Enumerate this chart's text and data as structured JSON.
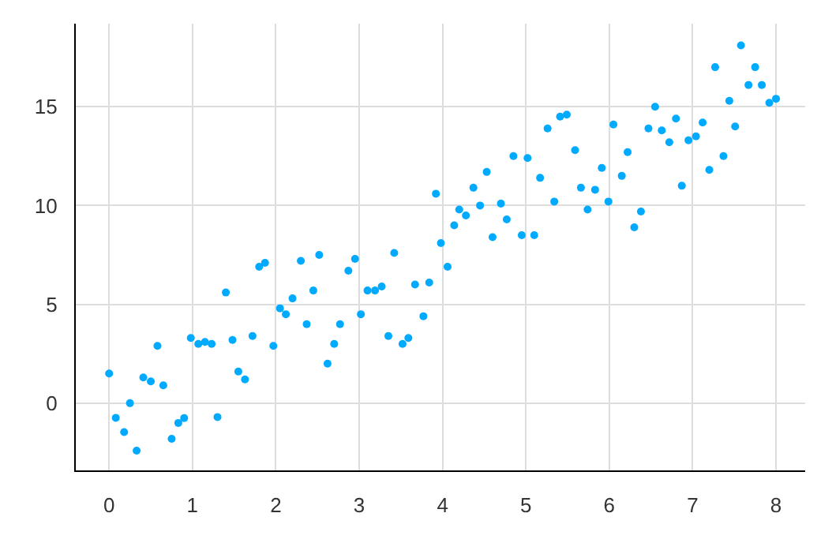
{
  "chart_data": {
    "type": "scatter",
    "marker": "circle",
    "grid": true,
    "xlim": [
      -0.4,
      8.35
    ],
    "ylim": [
      -3.4,
      19.2
    ],
    "xticks": [
      0,
      1,
      2,
      3,
      4,
      5,
      6,
      7,
      8
    ],
    "yticks": [
      0,
      5,
      10,
      15
    ],
    "series": [
      {
        "color": "#00aaff",
        "x": [
          0,
          0.08,
          0.18,
          0.25,
          0.33,
          0.41,
          0.5,
          0.58,
          0.65,
          0.75,
          0.83,
          0.9,
          0.98,
          1.07,
          1.15,
          1.23,
          1.3,
          1.4,
          1.48,
          1.55,
          1.63,
          1.72,
          1.8,
          1.87,
          1.97,
          2.05,
          2.12,
          2.2,
          2.3,
          2.37,
          2.45,
          2.52,
          2.62,
          2.7,
          2.77,
          2.87,
          2.95,
          3.02,
          3.1,
          3.19,
          3.27,
          3.35,
          3.42,
          3.52,
          3.59,
          3.67,
          3.77,
          3.84,
          3.92,
          3.98,
          4.06,
          4.14,
          4.2,
          4.28,
          4.37,
          4.45,
          4.53,
          4.6,
          4.7,
          4.77,
          4.85,
          4.95,
          5.02,
          5.1,
          5.17,
          5.26,
          5.34,
          5.41,
          5.49,
          5.59,
          5.66,
          5.74,
          5.83,
          5.91,
          5.99,
          6.05,
          6.15,
          6.22,
          6.3,
          6.38,
          6.47,
          6.55,
          6.63,
          6.72,
          6.8,
          6.87,
          6.95,
          7.04,
          7.12,
          7.2,
          7.27,
          7.37,
          7.44,
          7.51,
          7.58,
          7.67,
          7.75,
          7.83,
          7.92,
          8.0
        ],
        "values": [
          1.5,
          -0.74,
          -1.46,
          0,
          -2.4,
          1.3,
          1.1,
          2.9,
          0.9,
          -1.8,
          -1.0,
          -0.75,
          3.3,
          3.0,
          3.1,
          3.0,
          -0.7,
          5.6,
          3.2,
          1.6,
          1.2,
          3.4,
          6.9,
          7.1,
          2.9,
          4.8,
          4.5,
          5.3,
          7.2,
          4.0,
          5.7,
          7.5,
          2.0,
          3.0,
          4.0,
          6.7,
          7.3,
          4.5,
          5.7,
          5.7,
          5.9,
          3.4,
          7.6,
          3.0,
          3.3,
          6.0,
          4.4,
          6.1,
          10.6,
          8.1,
          6.9,
          9.0,
          9.8,
          9.5,
          10.9,
          10.0,
          11.7,
          8.4,
          10.1,
          9.3,
          12.5,
          8.5,
          12.4,
          8.5,
          11.4,
          13.9,
          10.2,
          14.5,
          14.6,
          12.8,
          10.9,
          9.8,
          10.8,
          11.9,
          10.2,
          14.1,
          11.5,
          12.7,
          8.9,
          9.7,
          13.9,
          15.0,
          13.8,
          13.2,
          14.4,
          11.0,
          13.3,
          13.5,
          14.2,
          11.8,
          17.0,
          12.5,
          15.3,
          14.0,
          18.1,
          16.1,
          17.0,
          16.1,
          15.2,
          15.4
        ]
      }
    ]
  }
}
